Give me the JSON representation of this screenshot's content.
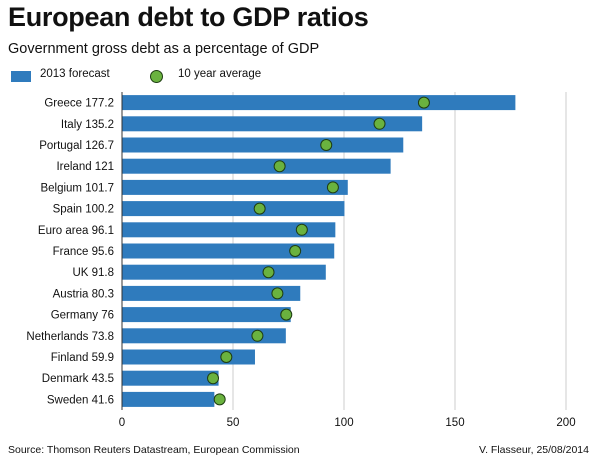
{
  "header": {
    "title": "European debt to GDP ratios",
    "subtitle": "Government gross debt as a percentage of GDP"
  },
  "legend": {
    "bar_label": "2013 forecast",
    "dot_label": "10 year average"
  },
  "colors": {
    "bar": "#2f7bbd",
    "dot": "#6ab23f",
    "dot_stroke": "#1e3d12",
    "grid": "#cccccc"
  },
  "footer": {
    "source": "Source: Thomson Reuters Datastream, European Commission",
    "credit": "V. Flasseur, 25/08/2014"
  },
  "chart_data": {
    "type": "bar",
    "orientation": "horizontal",
    "categories": [
      "Greece 177.2",
      "Italy 135.2",
      "Portugal 126.7",
      "Ireland 121",
      "Belgium 101.7",
      "Spain 100.2",
      "Euro area 96.1",
      "France 95.6",
      "UK 91.8",
      "Austria 80.3",
      "Germany 76",
      "Netherlands 73.8",
      "Finland 59.9",
      "Denmark 43.5",
      "Sweden 41.6"
    ],
    "series": [
      {
        "name": "2013 forecast",
        "values": [
          177.2,
          135.2,
          126.7,
          121,
          101.7,
          100.2,
          96.1,
          95.6,
          91.8,
          80.3,
          76,
          73.8,
          59.9,
          43.5,
          41.6
        ]
      },
      {
        "name": "10 year average",
        "values": [
          136,
          116,
          92,
          71,
          95,
          62,
          81,
          78,
          66,
          70,
          74,
          61,
          47,
          41,
          44
        ]
      }
    ],
    "xlim": [
      0,
      200
    ],
    "xticks": [
      0,
      50,
      100,
      150,
      200
    ],
    "xlabel": "",
    "ylabel": "",
    "grid": true,
    "legend_position": "top-left"
  }
}
